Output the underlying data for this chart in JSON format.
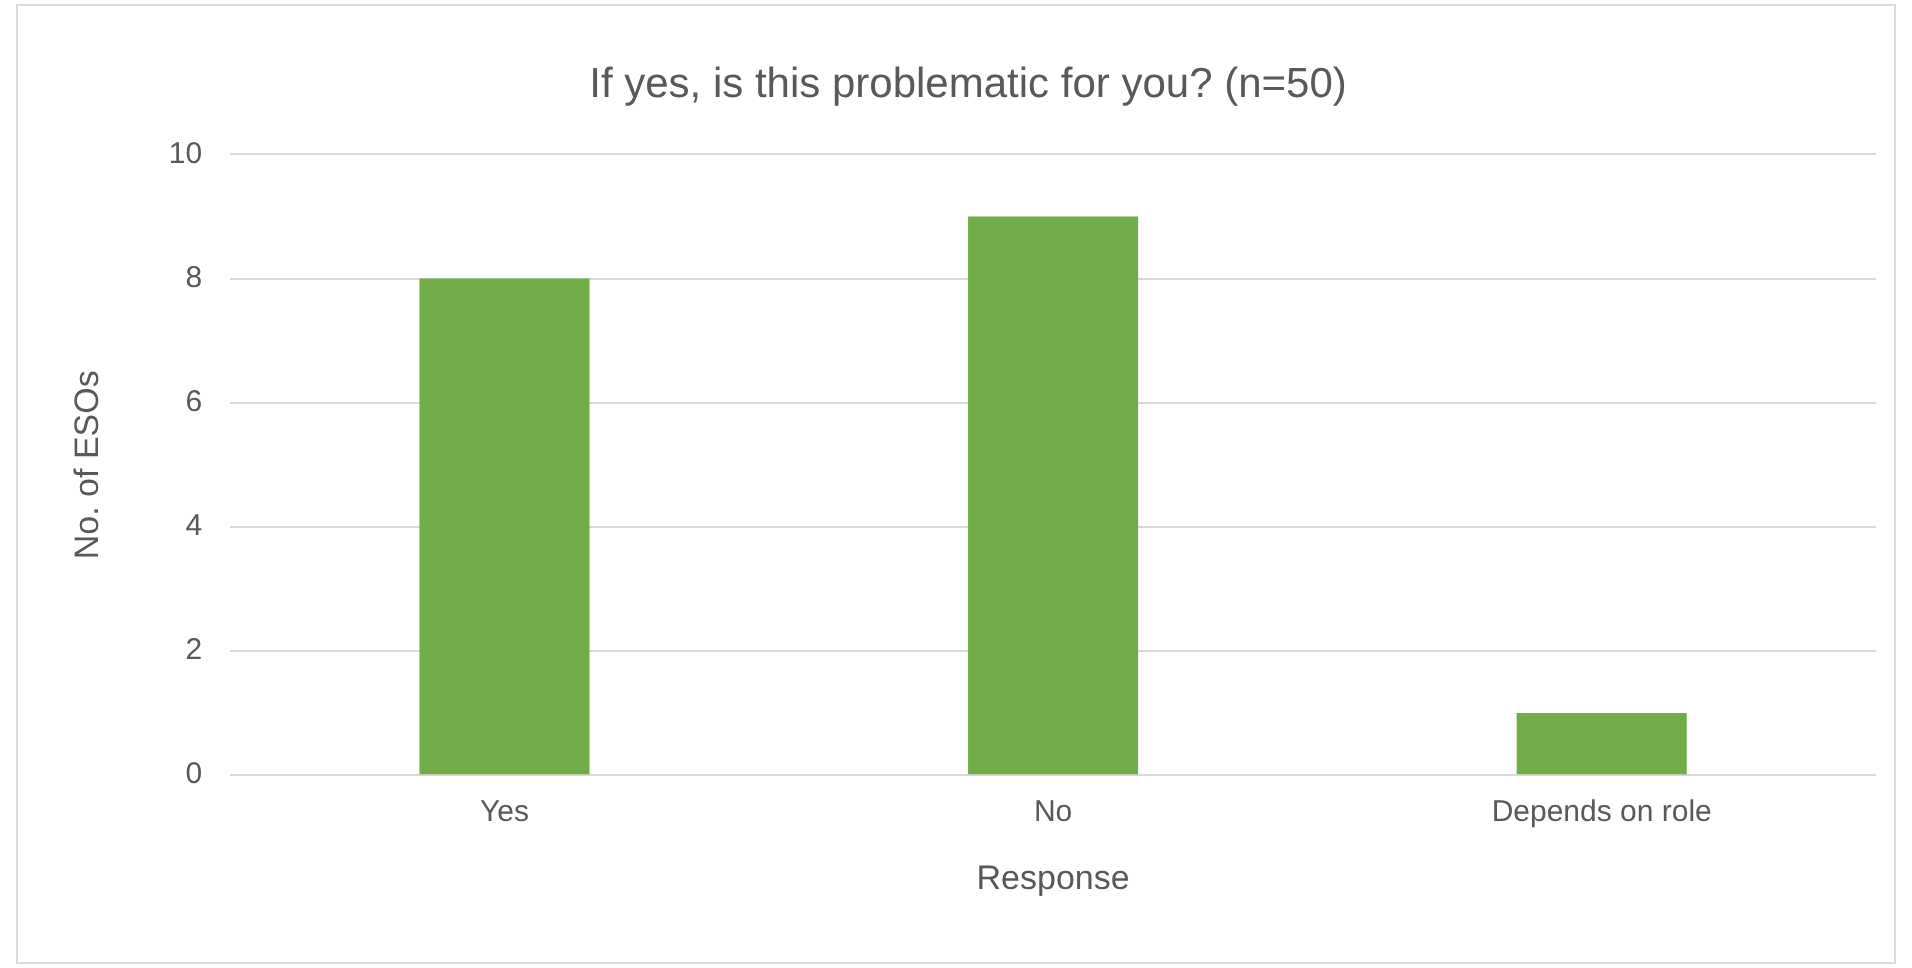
{
  "chart_data": {
    "type": "bar",
    "title": "If yes, is this problematic for you? (n=50)",
    "xlabel": "Response",
    "ylabel": "No. of ESOs",
    "categories": [
      "Yes",
      "No",
      "Depends on role"
    ],
    "values": [
      8,
      9,
      1
    ],
    "color": "#70ad47",
    "ylim": [
      0,
      10
    ],
    "yticks": [
      0,
      2,
      4,
      6,
      8,
      10
    ],
    "grid": "y",
    "legend": false
  }
}
